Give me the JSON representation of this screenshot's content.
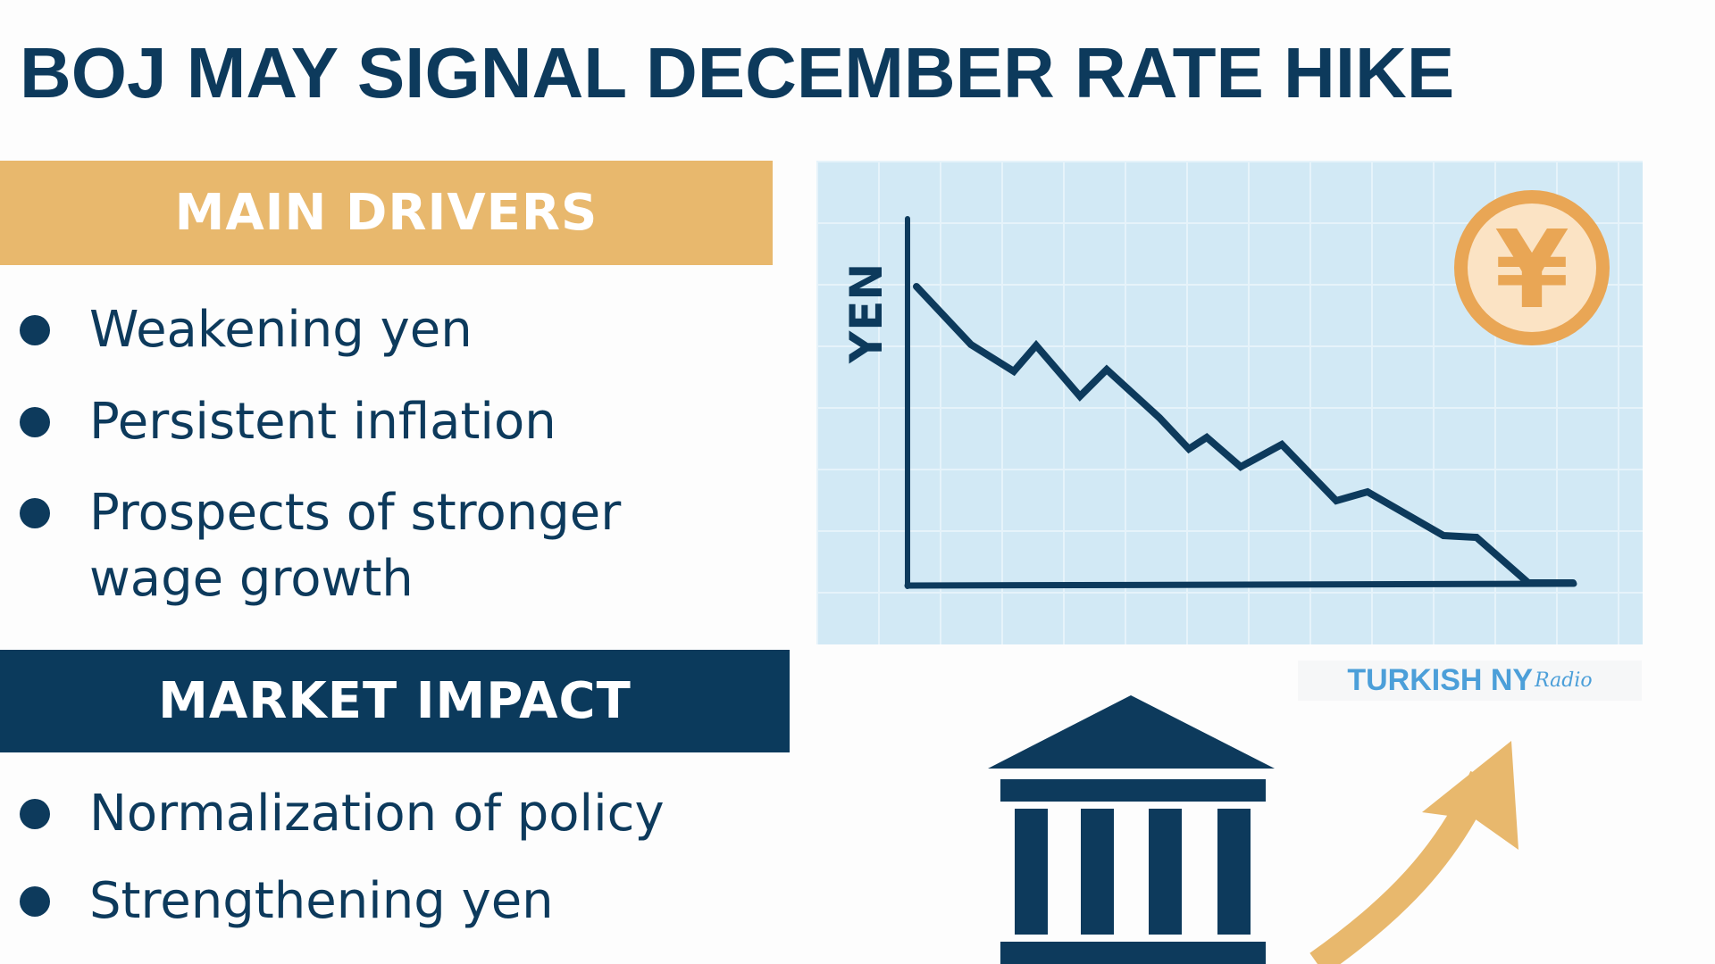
{
  "title": "BOJ MAY SIGNAL DECEMBER RATE HIKE",
  "main_drivers": {
    "heading": "MAIN DRIVERS",
    "items": [
      "Weakening yen",
      "Persistent inflation",
      "Prospects of stronger",
      "wage growth"
    ]
  },
  "market_impact": {
    "heading": "MARKET IMPACT",
    "items": [
      "Normalization of policy",
      "Strengthening yen"
    ]
  },
  "chart": {
    "axis_label": "YEN",
    "trend": "declining",
    "icon": "yen-coin-icon"
  },
  "logo": {
    "main": "TURKISH NY",
    "script": "Radio"
  },
  "icons": [
    "bank-building-icon",
    "upward-arrow-icon",
    "yen-coin-icon"
  ],
  "colors": {
    "navy": "#0d3a5c",
    "gold": "#e8b86d",
    "panel": "#d2e9f5",
    "coin": "#e9a655",
    "logo": "#4c9fd9"
  }
}
